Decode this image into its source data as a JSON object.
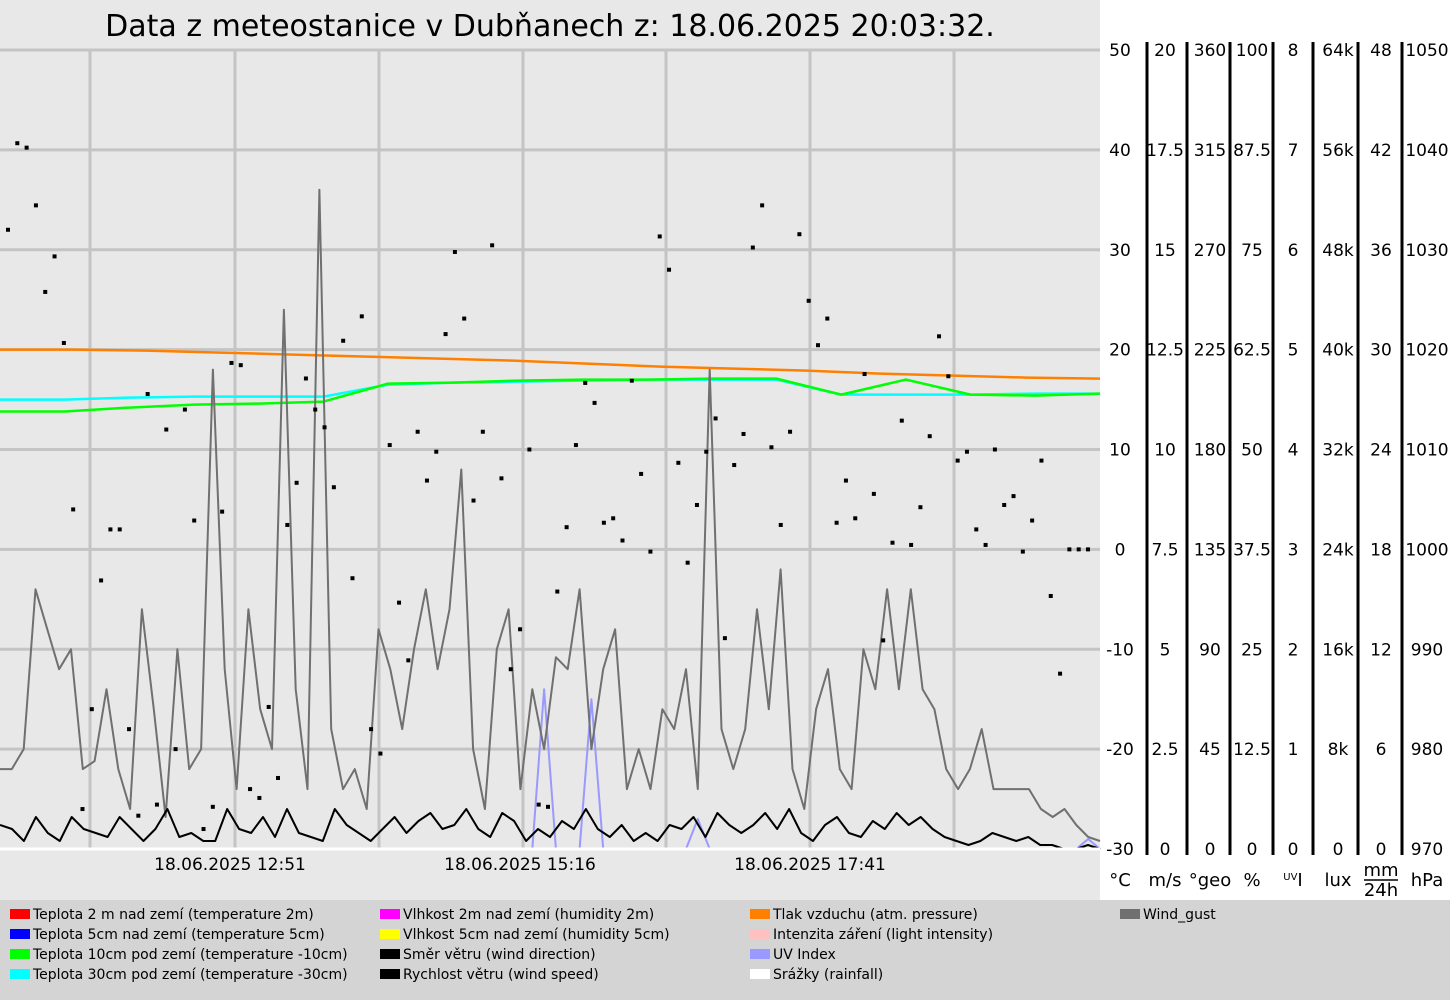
{
  "chart_data": {
    "type": "line",
    "title": "Data z meteostanice v Dubňanech z: 18.06.2025 20:03:32.",
    "x_ticks": [
      "18.06.2025 12:51",
      "18.06.2025 15:16",
      "18.06.2025 17:41"
    ],
    "axes": [
      {
        "unit": "°C",
        "ticks": [
          "50",
          "40",
          "30",
          "20",
          "10",
          "0",
          "-10",
          "-20",
          "-30"
        ]
      },
      {
        "unit": "m/s",
        "ticks": [
          "20",
          "17.5",
          "15",
          "12.5",
          "10",
          "7.5",
          "5",
          "2.5",
          "0"
        ]
      },
      {
        "unit": "°geo",
        "ticks": [
          "360",
          "315",
          "270",
          "225",
          "180",
          "135",
          "90",
          "45",
          "0"
        ]
      },
      {
        "unit": "%",
        "ticks": [
          "100",
          "87.5",
          "75",
          "62.5",
          "50",
          "37.5",
          "25",
          "12.5",
          "0"
        ]
      },
      {
        "unit": "UVI",
        "ticks": [
          "8",
          "7",
          "6",
          "5",
          "4",
          "3",
          "2",
          "1",
          "0"
        ]
      },
      {
        "unit": "lux",
        "ticks": [
          "64k",
          "56k",
          "48k",
          "40k",
          "32k",
          "24k",
          "16k",
          "8k",
          "0"
        ]
      },
      {
        "unit": "mm/24h",
        "ticks": [
          "48",
          "42",
          "36",
          "30",
          "24",
          "18",
          "12",
          "6",
          "0"
        ]
      },
      {
        "unit": "hPa",
        "ticks": [
          "1050",
          "1040",
          "1030",
          "1020",
          "1010",
          "1000",
          "990",
          "980",
          "970"
        ]
      }
    ],
    "series": [
      {
        "name": "Tlak vzduchu (atm. pressure)",
        "color": "#ff8000",
        "unit": "hPa",
        "values": [
          1020.0,
          1020.0,
          1019.9,
          1019.7,
          1019.5,
          1019.3,
          1019.1,
          1018.9,
          1018.6,
          1018.3,
          1018.1,
          1017.9,
          1017.6,
          1017.4,
          1017.2,
          1017.1
        ]
      },
      {
        "name": "Teplota 30cm pod zemí (temperature -30cm)",
        "color": "#00ffff",
        "unit": "°C",
        "values": [
          15.0,
          15.0,
          15.2,
          15.3,
          15.3,
          15.3,
          16.5,
          16.7,
          16.8,
          16.9,
          17.0,
          17.0,
          17.0,
          15.5,
          15.5,
          15.5,
          15.6,
          15.6
        ]
      },
      {
        "name": "Teplota 10cm pod zemí (temperature -10cm)",
        "color": "#00ff00",
        "unit": "°C",
        "values": [
          13.8,
          13.8,
          14.2,
          14.5,
          14.6,
          14.8,
          16.6,
          16.7,
          16.9,
          17.0,
          17.0,
          17.1,
          17.1,
          15.5,
          17.0,
          15.5,
          15.4,
          15.6
        ]
      },
      {
        "name": "Wind_gust",
        "color": "#707070",
        "unit": "m/s",
        "values": [
          2.0,
          2.0,
          2.5,
          6.5,
          5.5,
          4.5,
          5.0,
          2.0,
          2.2,
          4.0,
          2.0,
          1.0,
          6.0,
          3.5,
          0.8,
          5.0,
          2.0,
          2.5,
          12.0,
          4.5,
          1.5,
          6.0,
          3.5,
          2.5,
          13.5,
          4.0,
          1.5,
          16.5,
          3.0,
          1.5,
          2.0,
          1.0,
          5.5,
          4.5,
          3.0,
          5.0,
          6.5,
          4.5,
          6.0,
          9.5,
          2.5,
          1.0,
          5.0,
          6.0,
          1.5,
          4.0,
          2.5,
          4.8,
          4.5,
          6.5,
          2.5,
          4.5,
          5.5,
          1.5,
          2.5,
          1.5,
          3.5,
          3.0,
          4.5,
          1.5,
          12.0,
          3.0,
          2.0,
          3.0,
          6.0,
          3.5,
          7.0,
          2.0,
          1.0,
          3.5,
          4.5,
          2.0,
          1.5,
          5.0,
          4.0,
          6.5,
          4.0,
          6.5,
          4.0,
          3.5,
          2.0,
          1.5,
          2.0,
          3.0,
          1.5,
          1.5,
          1.5,
          1.5,
          1.0,
          0.8,
          1.0,
          0.6,
          0.3,
          0.2
        ]
      },
      {
        "name": "Rychlost větru (wind speed)",
        "color": "#000000",
        "unit": "m/s",
        "values": [
          0.6,
          0.5,
          0.2,
          0.8,
          0.4,
          0.2,
          0.8,
          0.5,
          0.4,
          0.3,
          0.8,
          0.5,
          0.2,
          0.5,
          1.0,
          0.3,
          0.4,
          0.2,
          0.2,
          1.0,
          0.5,
          0.4,
          0.8,
          0.3,
          1.0,
          0.4,
          0.3,
          0.2,
          1.0,
          0.6,
          0.4,
          0.2,
          0.5,
          0.8,
          0.4,
          0.7,
          0.9,
          0.5,
          0.6,
          1.0,
          0.5,
          0.3,
          0.9,
          0.7,
          0.2,
          0.5,
          0.3,
          0.7,
          0.5,
          1.0,
          0.5,
          0.3,
          0.6,
          0.2,
          0.4,
          0.2,
          0.6,
          0.5,
          0.8,
          0.3,
          0.9,
          0.6,
          0.4,
          0.6,
          0.9,
          0.5,
          1.0,
          0.4,
          0.2,
          0.6,
          0.8,
          0.4,
          0.3,
          0.7,
          0.5,
          0.9,
          0.6,
          0.8,
          0.5,
          0.3,
          0.2,
          0.1,
          0.2,
          0.4,
          0.3,
          0.2,
          0.3,
          0.1,
          0.1,
          0.0,
          0.0,
          0.1,
          0.0
        ]
      },
      {
        "name": "UV Index",
        "color": "#9999ff",
        "unit": "UVI",
        "values": [
          0,
          0,
          0,
          0,
          0,
          0,
          0,
          0,
          0,
          0,
          0,
          0,
          0,
          0,
          0,
          0,
          0,
          0,
          0,
          0,
          0,
          0,
          0,
          0,
          0,
          0,
          0,
          0,
          0,
          0,
          0,
          0,
          0,
          0,
          0,
          0,
          0,
          0,
          0,
          0,
          0,
          0,
          0,
          0,
          0,
          0,
          1.6,
          0,
          0,
          0,
          1.5,
          0,
          0,
          0,
          0,
          0,
          0,
          0,
          0,
          0.3,
          0,
          0,
          0,
          0,
          0,
          0,
          0,
          0,
          0,
          0,
          0,
          0,
          0,
          0,
          0,
          0,
          0,
          0,
          0,
          0,
          0,
          0,
          0,
          0,
          0,
          0,
          0,
          0,
          0,
          0,
          0,
          0,
          0.1,
          0
        ]
      },
      {
        "name": "Směr větru (wind direction)",
        "color": "#000000",
        "unit": "°geo",
        "style": "dots",
        "values": [
          279,
          318,
          316,
          290,
          251,
          267,
          228,
          153,
          18,
          63,
          121,
          144,
          144,
          54,
          15,
          205,
          20,
          189,
          45,
          198,
          148,
          9,
          19,
          152,
          219,
          218,
          27,
          23,
          64,
          32,
          146,
          165,
          212,
          198,
          190,
          163,
          229,
          122,
          240,
          54,
          43,
          182,
          111,
          85,
          188,
          166,
          179,
          232,
          269,
          239,
          157,
          188,
          272,
          167,
          81,
          99,
          180,
          20,
          19,
          116,
          145,
          182,
          210,
          201,
          147,
          149,
          139,
          211,
          169,
          134,
          276,
          261,
          174,
          129,
          155,
          179,
          194,
          95,
          173,
          187,
          271,
          290,
          181,
          146,
          188,
          277,
          247,
          227,
          239,
          147,
          166,
          149,
          214,
          160,
          94,
          138,
          193,
          137,
          154,
          186,
          231,
          213,
          175,
          179,
          144,
          137,
          180,
          155,
          159,
          134,
          148,
          175,
          114,
          79,
          135,
          135,
          135
        ]
      }
    ],
    "legend": [
      {
        "label": "Teplota 2 m nad zemí (temperature 2m)",
        "color": "#ff0000"
      },
      {
        "label": "Teplota 5cm nad zemí (temperature 5cm)",
        "color": "#0000ff"
      },
      {
        "label": "Teplota 10cm pod zemí (temperature -10cm)",
        "color": "#00ff00"
      },
      {
        "label": "Teplota 30cm pod zemí (temperature -30cm)",
        "color": "#00ffff"
      },
      {
        "label": "Vlhkost 2m nad zemí (humidity 2m)",
        "color": "#ff00ff"
      },
      {
        "label": "Vlhkost 5cm nad zemí (humidity 5cm)",
        "color": "#ffff00"
      },
      {
        "label": "Směr větru (wind direction)",
        "color": "#000000"
      },
      {
        "label": "Rychlost větru (wind speed)",
        "color": "#000000"
      },
      {
        "label": "Tlak vzduchu (atm. pressure)",
        "color": "#ff8000"
      },
      {
        "label": "Intenzita záření (light intensity)",
        "color": "#ffc0c0"
      },
      {
        "label": "UV Index",
        "color": "#9999ff"
      },
      {
        "label": "Srážky (rainfall)",
        "color": "#ffffff"
      },
      {
        "label": "Wind_gust",
        "color": "#707070"
      }
    ],
    "grid": true
  }
}
